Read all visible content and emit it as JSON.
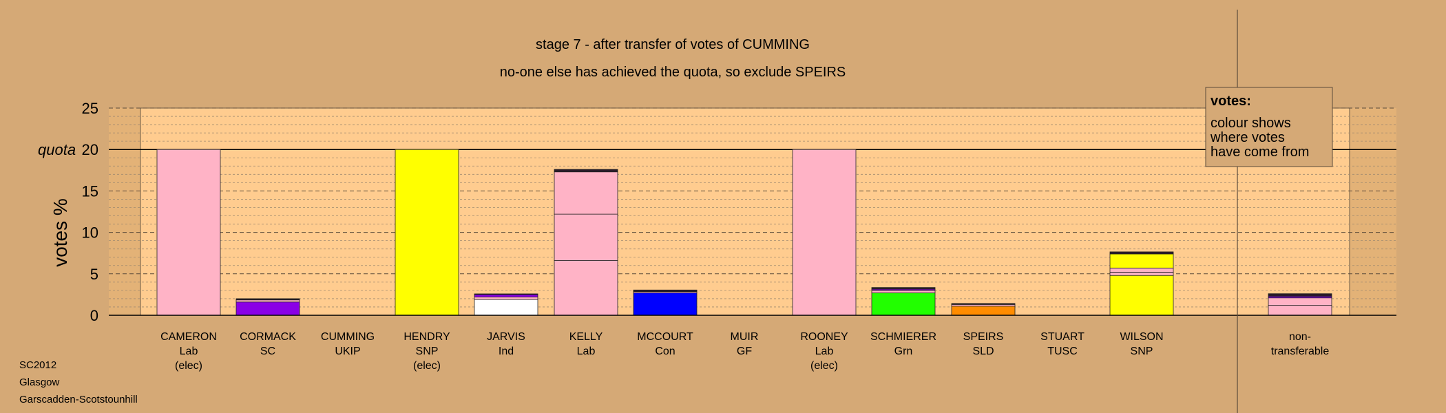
{
  "chart_data": {
    "type": "bar",
    "stacked": true,
    "title": "stage 7 - after transfer of votes of CUMMING",
    "subtitle": "no-one else has achieved the quota, so exclude SPEIRS",
    "ylabel": "votes %",
    "ylim": [
      0,
      25
    ],
    "yticks": [
      0,
      5,
      10,
      15,
      20,
      25
    ],
    "quota_value": 20,
    "quota_label": "quota",
    "grid": true,
    "legend": {
      "heading": "votes:",
      "lines": [
        "colour shows",
        "where votes",
        "have come from"
      ],
      "placement": "top-right"
    },
    "footer": [
      "SC2012",
      "Glasgow",
      "Garscadden-Scotstounhill"
    ],
    "colors": {
      "background": "#D5A976",
      "plot_area": "#FFCC8F",
      "Lab": "#FFB3C6",
      "SC": "#8A00E6",
      "SNP": "#FFFF00",
      "Ind": "#FFFFFF",
      "Con": "#0000FF",
      "Grn": "#22FF00",
      "SLD": "#FF8C00",
      "UKIP": "#7A00A0",
      "other": "#2A1A2A"
    },
    "bars": [
      {
        "name": "CAMERON",
        "party": "Lab",
        "note": "(elec)",
        "segments": [
          {
            "value": 20.0,
            "color": "Lab"
          }
        ]
      },
      {
        "name": "CORMACK",
        "party": "SC",
        "note": "",
        "segments": [
          {
            "value": 1.6,
            "color": "SC"
          },
          {
            "value": 0.25,
            "color": "Lab"
          },
          {
            "value": 0.15,
            "color": "other"
          }
        ]
      },
      {
        "name": "CUMMING",
        "party": "UKIP",
        "note": "",
        "segments": []
      },
      {
        "name": "HENDRY",
        "party": "SNP",
        "note": "(elec)",
        "segments": [
          {
            "value": 20.0,
            "color": "SNP"
          }
        ]
      },
      {
        "name": "JARVIS",
        "party": "Ind",
        "note": "",
        "segments": [
          {
            "value": 1.9,
            "color": "Ind"
          },
          {
            "value": 0.3,
            "color": "Lab"
          },
          {
            "value": 0.3,
            "color": "SC"
          },
          {
            "value": 0.08,
            "color": "other"
          }
        ]
      },
      {
        "name": "KELLY",
        "party": "Lab",
        "note": "",
        "segments": [
          {
            "value": 6.6,
            "color": "Lab"
          },
          {
            "value": 5.6,
            "color": "Lab"
          },
          {
            "value": 5.1,
            "color": "Lab"
          },
          {
            "value": 0.3,
            "color": "other"
          }
        ]
      },
      {
        "name": "MCCOURT",
        "party": "Con",
        "note": "",
        "segments": [
          {
            "value": 2.7,
            "color": "Con"
          },
          {
            "value": 0.15,
            "color": "Lab"
          },
          {
            "value": 0.2,
            "color": "other"
          }
        ]
      },
      {
        "name": "MUIR",
        "party": "GF",
        "note": "",
        "segments": []
      },
      {
        "name": "ROONEY",
        "party": "Lab",
        "note": "(elec)",
        "segments": [
          {
            "value": 20.0,
            "color": "Lab"
          }
        ]
      },
      {
        "name": "SCHMIERER",
        "party": "Grn",
        "note": "",
        "segments": [
          {
            "value": 2.7,
            "color": "Grn"
          },
          {
            "value": 0.3,
            "color": "Lab"
          },
          {
            "value": 0.15,
            "color": "SC"
          },
          {
            "value": 0.2,
            "color": "other"
          }
        ]
      },
      {
        "name": "SPEIRS",
        "party": "SLD",
        "note": "",
        "segments": [
          {
            "value": 1.1,
            "color": "SLD"
          },
          {
            "value": 0.2,
            "color": "Lab"
          },
          {
            "value": 0.12,
            "color": "other"
          }
        ]
      },
      {
        "name": "STUART",
        "party": "TUSC",
        "note": "",
        "segments": []
      },
      {
        "name": "WILSON",
        "party": "SNP",
        "note": "",
        "segments": [
          {
            "value": 4.8,
            "color": "SNP"
          },
          {
            "value": 0.4,
            "color": "Lab"
          },
          {
            "value": 0.5,
            "color": "Lab"
          },
          {
            "value": 1.7,
            "color": "SNP"
          },
          {
            "value": 0.25,
            "color": "other"
          }
        ]
      },
      {
        "name": "non-",
        "party": "transferable",
        "note": "",
        "segments": [
          {
            "value": 1.2,
            "color": "Lab"
          },
          {
            "value": 0.9,
            "color": "Lab"
          },
          {
            "value": 0.2,
            "color": "SC"
          },
          {
            "value": 0.3,
            "color": "other"
          }
        ]
      }
    ]
  }
}
